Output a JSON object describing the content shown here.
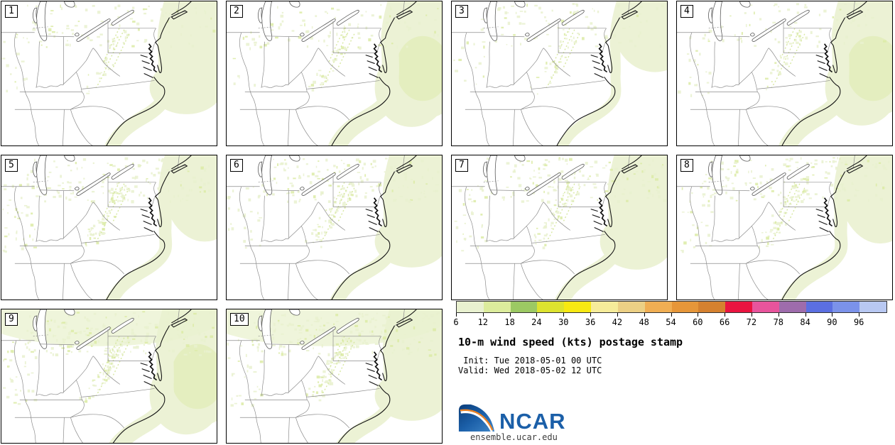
{
  "panels": [
    {
      "label": "1"
    },
    {
      "label": "2"
    },
    {
      "label": "3"
    },
    {
      "label": "4"
    },
    {
      "label": "5"
    },
    {
      "label": "6"
    },
    {
      "label": "7"
    },
    {
      "label": "8"
    },
    {
      "label": "9"
    },
    {
      "label": "10"
    }
  ],
  "colorbar": {
    "tick_labels": [
      "6",
      "12",
      "18",
      "24",
      "30",
      "36",
      "42",
      "48",
      "54",
      "60",
      "66",
      "72",
      "78",
      "84",
      "90",
      "96"
    ],
    "colors": [
      "#e9f1d0",
      "#dcec9c",
      "#9cc963",
      "#dde32f",
      "#f7e912",
      "#f6ec9a",
      "#ecd085",
      "#f0ae53",
      "#e69639",
      "#d5812f",
      "#ea1440",
      "#e8549c",
      "#9e6cac",
      "#5b6fe1",
      "#7b92ea",
      "#b8c8f2"
    ]
  },
  "legend": {
    "title": "10-m wind speed (kts) postage stamp",
    "init_line": " Init: Tue 2018-05-01 00 UTC",
    "valid_line": "Valid: Wed 2018-05-02 12 UTC"
  },
  "logo": {
    "text": "NCAR",
    "site": "ensemble.ucar.edu",
    "blue": "#1b5fa8",
    "orange": "#ef8322"
  }
}
